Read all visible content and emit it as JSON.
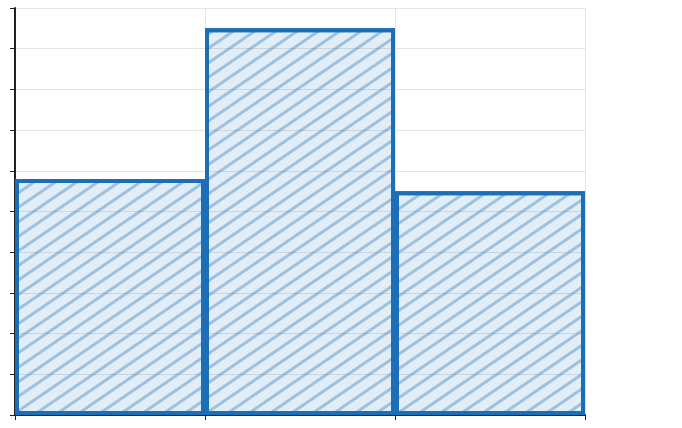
{
  "chart_data": {
    "type": "bar",
    "categories": [
      null,
      null,
      null
    ],
    "values": [
      5.8,
      9.5,
      5.5
    ],
    "color": "#1b6fb8",
    "ylim": [
      0,
      10
    ],
    "yticks": [
      0,
      1,
      2,
      3,
      4,
      5,
      6,
      7,
      8,
      9,
      10
    ],
    "grid": true,
    "tick_labels": false
  }
}
